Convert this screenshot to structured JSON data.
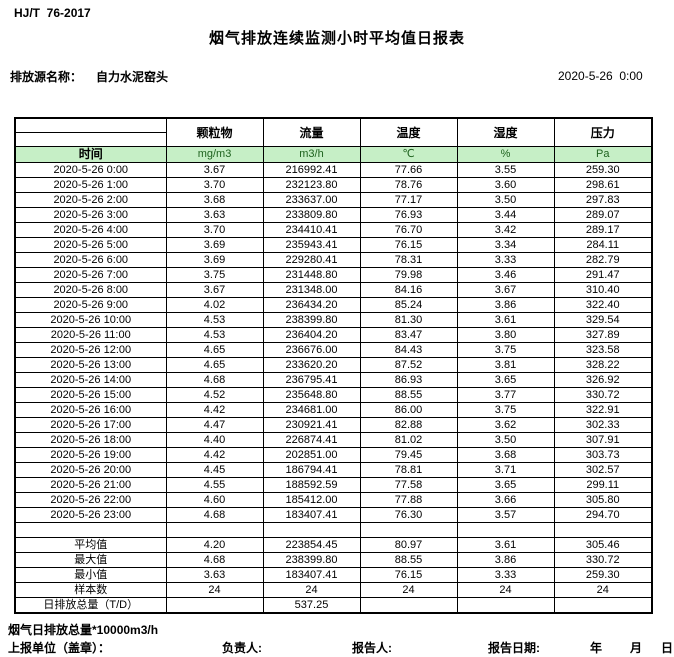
{
  "header": {
    "standard": "HJ/T  76-2017",
    "title": "烟气排放连续监测小时平均值日报表",
    "source_label": "排放源名称：",
    "source_name": "自力水泥窑头",
    "datetime": "2020-5-26  0:00"
  },
  "table": {
    "time_header": "时间",
    "columns": [
      {
        "name": "颗粒物",
        "unit": "mg/m3"
      },
      {
        "name": "流量",
        "unit": "m3/h"
      },
      {
        "name": "温度",
        "unit": "℃"
      },
      {
        "name": "湿度",
        "unit": "%"
      },
      {
        "name": "压力",
        "unit": "Pa"
      }
    ],
    "rows": [
      {
        "time": "2020-5-26 0:00",
        "values": [
          "3.67",
          "216992.41",
          "77.66",
          "3.55",
          "259.30"
        ]
      },
      {
        "time": "2020-5-26 1:00",
        "values": [
          "3.70",
          "232123.80",
          "78.76",
          "3.60",
          "298.61"
        ]
      },
      {
        "time": "2020-5-26 2:00",
        "values": [
          "3.68",
          "233637.00",
          "77.17",
          "3.50",
          "297.83"
        ]
      },
      {
        "time": "2020-5-26 3:00",
        "values": [
          "3.63",
          "233809.80",
          "76.93",
          "3.44",
          "289.07"
        ]
      },
      {
        "time": "2020-5-26 4:00",
        "values": [
          "3.70",
          "234410.41",
          "76.70",
          "3.42",
          "289.17"
        ]
      },
      {
        "time": "2020-5-26 5:00",
        "values": [
          "3.69",
          "235943.41",
          "76.15",
          "3.34",
          "284.11"
        ]
      },
      {
        "time": "2020-5-26 6:00",
        "values": [
          "3.69",
          "229280.41",
          "78.31",
          "3.33",
          "282.79"
        ]
      },
      {
        "time": "2020-5-26 7:00",
        "values": [
          "3.75",
          "231448.80",
          "79.98",
          "3.46",
          "291.47"
        ]
      },
      {
        "time": "2020-5-26 8:00",
        "values": [
          "3.67",
          "231348.00",
          "84.16",
          "3.67",
          "310.40"
        ]
      },
      {
        "time": "2020-5-26 9:00",
        "values": [
          "4.02",
          "236434.20",
          "85.24",
          "3.86",
          "322.40"
        ]
      },
      {
        "time": "2020-5-26 10:00",
        "values": [
          "4.53",
          "238399.80",
          "81.30",
          "3.61",
          "329.54"
        ]
      },
      {
        "time": "2020-5-26 11:00",
        "values": [
          "4.53",
          "236404.20",
          "83.47",
          "3.80",
          "327.89"
        ]
      },
      {
        "time": "2020-5-26 12:00",
        "values": [
          "4.65",
          "236676.00",
          "84.43",
          "3.75",
          "323.58"
        ]
      },
      {
        "time": "2020-5-26 13:00",
        "values": [
          "4.65",
          "233620.20",
          "87.52",
          "3.81",
          "328.22"
        ]
      },
      {
        "time": "2020-5-26 14:00",
        "values": [
          "4.68",
          "236795.41",
          "86.93",
          "3.65",
          "326.92"
        ]
      },
      {
        "time": "2020-5-26 15:00",
        "values": [
          "4.52",
          "235648.80",
          "88.55",
          "3.77",
          "330.72"
        ]
      },
      {
        "time": "2020-5-26 16:00",
        "values": [
          "4.42",
          "234681.00",
          "86.00",
          "3.75",
          "322.91"
        ]
      },
      {
        "time": "2020-5-26 17:00",
        "values": [
          "4.47",
          "230921.41",
          "82.88",
          "3.62",
          "302.33"
        ]
      },
      {
        "time": "2020-5-26 18:00",
        "values": [
          "4.40",
          "226874.41",
          "81.02",
          "3.50",
          "307.91"
        ]
      },
      {
        "time": "2020-5-26 19:00",
        "values": [
          "4.42",
          "202851.00",
          "79.45",
          "3.68",
          "303.73"
        ]
      },
      {
        "time": "2020-5-26 20:00",
        "values": [
          "4.45",
          "186794.41",
          "78.81",
          "3.71",
          "302.57"
        ]
      },
      {
        "time": "2020-5-26 21:00",
        "values": [
          "4.55",
          "188592.59",
          "77.58",
          "3.65",
          "299.11"
        ]
      },
      {
        "time": "2020-5-26 22:00",
        "values": [
          "4.60",
          "185412.00",
          "77.88",
          "3.66",
          "305.80"
        ]
      },
      {
        "time": "2020-5-26 23:00",
        "values": [
          "4.68",
          "183407.41",
          "76.30",
          "3.57",
          "294.70"
        ]
      }
    ],
    "summary": [
      {
        "label": "平均值",
        "values": [
          "4.20",
          "223854.45",
          "80.97",
          "3.61",
          "305.46"
        ]
      },
      {
        "label": "最大值",
        "values": [
          "4.68",
          "238399.80",
          "88.55",
          "3.86",
          "330.72"
        ]
      },
      {
        "label": "最小值",
        "values": [
          "3.63",
          "183407.41",
          "76.15",
          "3.33",
          "259.30"
        ]
      },
      {
        "label": "样本数",
        "values": [
          "24",
          "24",
          "24",
          "24",
          "24"
        ]
      },
      {
        "label": "日排放总量（T/D）",
        "values": [
          "",
          "537.25",
          "",
          "",
          ""
        ]
      }
    ]
  },
  "footer": {
    "note": "烟气日排放总量*10000m3/h",
    "report_unit_label": "上报单位（盖章）：",
    "responsible_label": "负责人:",
    "reporter_label": "报告人:",
    "report_date_label": "报告日期:",
    "year_label": "年",
    "month_label": "月",
    "day_label": "日"
  },
  "colors": {
    "unit_row_bg": "#c6efc6",
    "unit_text": "#1f631f",
    "border": "#000000"
  }
}
